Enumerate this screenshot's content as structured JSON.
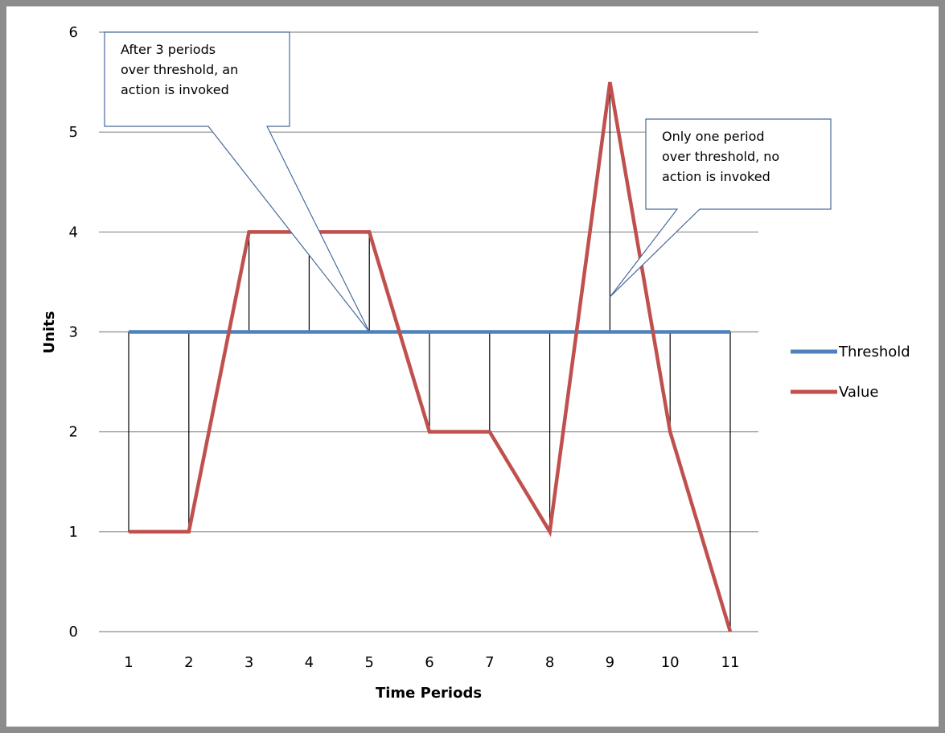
{
  "chart_data": {
    "type": "line",
    "title": "",
    "xlabel": "Time Periods",
    "ylabel": "Units",
    "categories": [
      "1",
      "2",
      "3",
      "4",
      "5",
      "6",
      "7",
      "8",
      "9",
      "10",
      "11"
    ],
    "ylim": [
      0,
      6
    ],
    "yticks": [
      0,
      1,
      2,
      3,
      4,
      5,
      6
    ],
    "grid": true,
    "legend_position": "right",
    "series": [
      {
        "name": "Threshold",
        "color": "#4f81bd",
        "values": [
          3,
          3,
          3,
          3,
          3,
          3,
          3,
          3,
          3,
          3,
          3
        ]
      },
      {
        "name": "Value",
        "color": "#c0504d",
        "values": [
          1,
          1,
          4,
          4,
          4,
          2,
          2,
          1,
          5.5,
          2,
          0
        ]
      }
    ],
    "drop_lines": true,
    "annotations": [
      {
        "lines": [
          "After 3 periods",
          "over threshold, an",
          "action is invoked"
        ],
        "points_to": {
          "x": "5",
          "y": 3
        }
      },
      {
        "lines": [
          "Only one period",
          "over threshold, no",
          "action is invoked"
        ],
        "points_to": {
          "x": "9",
          "y": 3.35
        }
      }
    ]
  }
}
